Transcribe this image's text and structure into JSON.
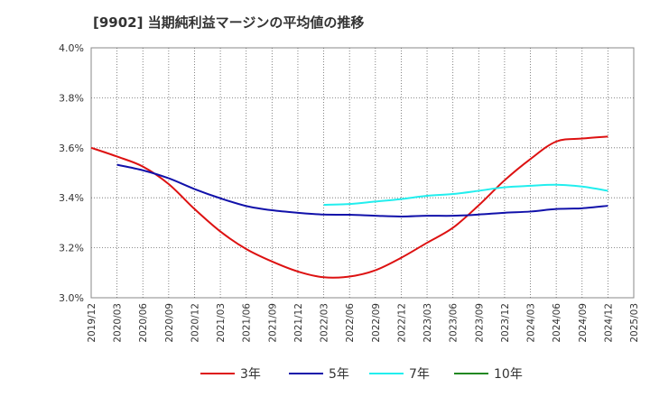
{
  "chart_data": {
    "type": "line",
    "title": "[9902]  当期純利益マージンの平均値の推移",
    "xlabel": "",
    "ylabel": "",
    "ylim": [
      3.0,
      4.0
    ],
    "y_ticks": [
      "3.0%",
      "3.2%",
      "3.4%",
      "3.6%",
      "3.8%",
      "4.0%"
    ],
    "y_tick_values": [
      3.0,
      3.2,
      3.4,
      3.6,
      3.8,
      4.0
    ],
    "x_ticks": [
      "2019/12",
      "2020/03",
      "2020/06",
      "2020/09",
      "2020/12",
      "2021/03",
      "2021/06",
      "2021/09",
      "2021/12",
      "2022/03",
      "2022/06",
      "2022/09",
      "2022/12",
      "2023/03",
      "2023/06",
      "2023/09",
      "2023/12",
      "2024/03",
      "2024/06",
      "2024/09",
      "2024/12",
      "2025/03"
    ],
    "grid": true,
    "legend_position": "bottom",
    "series": [
      {
        "name": "3年",
        "color": "#dd1111",
        "x": [
          "2019/12",
          "2020/03",
          "2020/06",
          "2020/09",
          "2020/12",
          "2021/03",
          "2021/06",
          "2021/09",
          "2021/12",
          "2022/03",
          "2022/06",
          "2022/09",
          "2022/12",
          "2023/03",
          "2023/06",
          "2023/09",
          "2023/12",
          "2024/03",
          "2024/06",
          "2024/09",
          "2024/12"
        ],
        "values": [
          3.6,
          3.565,
          3.525,
          3.455,
          3.355,
          3.265,
          3.195,
          3.145,
          3.105,
          3.082,
          3.085,
          3.11,
          3.16,
          3.22,
          3.28,
          3.37,
          3.47,
          3.555,
          3.625,
          3.637,
          3.645
        ]
      },
      {
        "name": "5年",
        "color": "#1111aa",
        "x": [
          "2020/03",
          "2020/06",
          "2020/09",
          "2020/12",
          "2021/03",
          "2021/06",
          "2021/09",
          "2021/12",
          "2022/03",
          "2022/06",
          "2022/09",
          "2022/12",
          "2023/03",
          "2023/06",
          "2023/09",
          "2023/12",
          "2024/03",
          "2024/06",
          "2024/09",
          "2024/12"
        ],
        "values": [
          3.532,
          3.51,
          3.478,
          3.435,
          3.398,
          3.367,
          3.35,
          3.34,
          3.333,
          3.332,
          3.328,
          3.325,
          3.328,
          3.328,
          3.333,
          3.34,
          3.345,
          3.355,
          3.358,
          3.368
        ]
      },
      {
        "name": "7年",
        "color": "#22eeee",
        "x": [
          "2022/03",
          "2022/06",
          "2022/09",
          "2022/12",
          "2023/03",
          "2023/06",
          "2023/09",
          "2023/12",
          "2024/03",
          "2024/06",
          "2024/09",
          "2024/12"
        ],
        "values": [
          3.372,
          3.375,
          3.385,
          3.395,
          3.408,
          3.415,
          3.428,
          3.442,
          3.448,
          3.452,
          3.445,
          3.428
        ]
      },
      {
        "name": "10年",
        "color": "#228822",
        "x": [],
        "values": []
      }
    ]
  }
}
